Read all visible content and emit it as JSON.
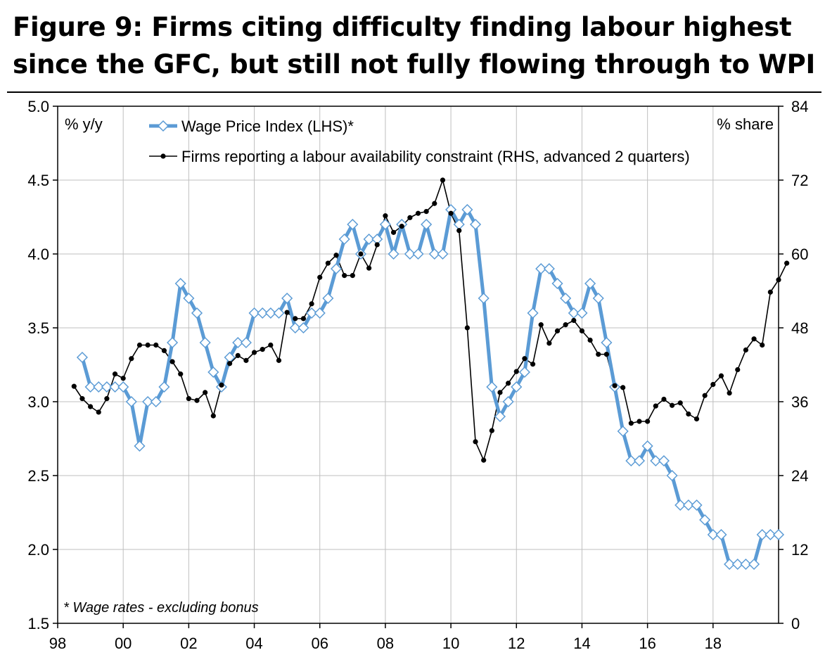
{
  "title": "Figure 9: Firms citing difficulty finding labour highest since the GFC, but still not fully flowing through to WPI",
  "chart_data": {
    "type": "line",
    "title": "Figure 9: Firms citing difficulty finding labour highest since the GFC, but still not fully flowing through to WPI",
    "left_axis": {
      "label": "% y/y",
      "range": [
        1.5,
        5.0
      ],
      "ticks": [
        "1.5",
        "2.0",
        "2.5",
        "3.0",
        "3.5",
        "4.0",
        "4.5",
        "5.0"
      ]
    },
    "right_axis": {
      "label": "% share",
      "range": [
        0,
        84
      ],
      "ticks": [
        "0",
        "12",
        "24",
        "36",
        "48",
        "60",
        "72",
        "84"
      ]
    },
    "x_axis": {
      "range": [
        1998,
        2020
      ],
      "ticks": [
        "98",
        "00",
        "02",
        "04",
        "06",
        "08",
        "10",
        "12",
        "14",
        "16",
        "18"
      ]
    },
    "grid": true,
    "footnote": "* Wage rates - excluding bonus",
    "colors": {
      "wpi": "#5b9bd5",
      "firms": "#000000",
      "grid": "#bfbfbf"
    },
    "series": [
      {
        "name": "Wage Price Index (LHS)*",
        "axis": "left",
        "marker": "diamond",
        "start": 1998.75,
        "step": 0.25,
        "values": [
          3.3,
          3.1,
          3.1,
          3.1,
          3.1,
          3.1,
          3.0,
          2.7,
          3.0,
          3.0,
          3.1,
          3.4,
          3.8,
          3.7,
          3.6,
          3.4,
          3.2,
          3.1,
          3.3,
          3.4,
          3.4,
          3.6,
          3.6,
          3.6,
          3.6,
          3.7,
          3.5,
          3.5,
          3.6,
          3.6,
          3.7,
          3.9,
          4.1,
          4.2,
          4.0,
          4.1,
          4.1,
          4.2,
          4.0,
          4.2,
          4.0,
          4.0,
          4.2,
          4.0,
          4.0,
          4.3,
          4.2,
          4.3,
          4.2,
          3.7,
          3.1,
          2.9,
          3.0,
          3.1,
          3.2,
          3.6,
          3.9,
          3.9,
          3.8,
          3.7,
          3.6,
          3.6,
          3.8,
          3.7,
          3.4,
          3.1,
          2.8,
          2.6,
          2.6,
          2.7,
          2.6,
          2.6,
          2.5,
          2.3,
          2.3,
          2.3,
          2.2,
          2.1,
          2.1,
          1.9,
          1.9,
          1.9,
          1.9,
          2.1,
          2.1,
          2.1
        ]
      },
      {
        "name": "Firms reporting a labour availability constraint (RHS, advanced 2 quarters)",
        "axis": "right",
        "marker": "dot",
        "start": 1998.5,
        "step": 0.25,
        "values": [
          38.5,
          36.5,
          35.2,
          34.3,
          36.5,
          40.5,
          39.8,
          43,
          45.2,
          45.2,
          45.2,
          44.3,
          42.5,
          40.5,
          36.5,
          36.2,
          37.5,
          33.7,
          38.7,
          42.2,
          43.5,
          42.7,
          44,
          44.5,
          45.2,
          42.7,
          50.5,
          49.5,
          49.5,
          51.9,
          56.2,
          58.5,
          59.8,
          56.5,
          56.5,
          60,
          57.7,
          61.5,
          66.2,
          63.5,
          64.5,
          65.9,
          66.6,
          66.9,
          68.2,
          72,
          66.6,
          63.8,
          48,
          29.5,
          26.5,
          31.3,
          37.5,
          39,
          40.9,
          43,
          42.1,
          48.5,
          45.5,
          47.5,
          48.5,
          49.2,
          47.5,
          46,
          43.7,
          43.7,
          38.6,
          38.3,
          32.5,
          32.8,
          32.8,
          35.3,
          36.4,
          35.4,
          35.8,
          34,
          33.2,
          37,
          38.8,
          40.2,
          37.4,
          41.2,
          44.4,
          46.2,
          45.2,
          53.8,
          55.8,
          58.5
        ]
      }
    ]
  }
}
